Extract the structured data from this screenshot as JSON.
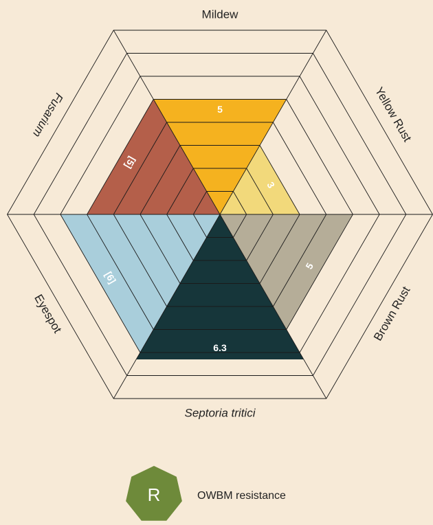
{
  "chart_data": {
    "type": "hexagon-radar",
    "categories": [
      "Mildew",
      "Yellow Rust",
      "Brown Rust",
      "Septoria tritici",
      "Eyespot",
      "Fusarium"
    ],
    "italic": [
      false,
      false,
      false,
      true,
      false,
      true
    ],
    "values": [
      5,
      3,
      5,
      6.3,
      6,
      5
    ],
    "value_labels": [
      "5",
      "3",
      "5",
      "6.3",
      "[6]",
      "[5]"
    ],
    "colors": [
      "#f5b21f",
      "#f2d97b",
      "#b5ad98",
      "#16363a",
      "#a9cedb",
      "#b45f4a"
    ],
    "rlim": [
      0,
      8
    ],
    "rticks": [
      1,
      2,
      3,
      4,
      5,
      6,
      7,
      8
    ],
    "legend": {
      "symbol": "R",
      "label": "OWBM resistance",
      "color": "#6e8a3a"
    }
  }
}
